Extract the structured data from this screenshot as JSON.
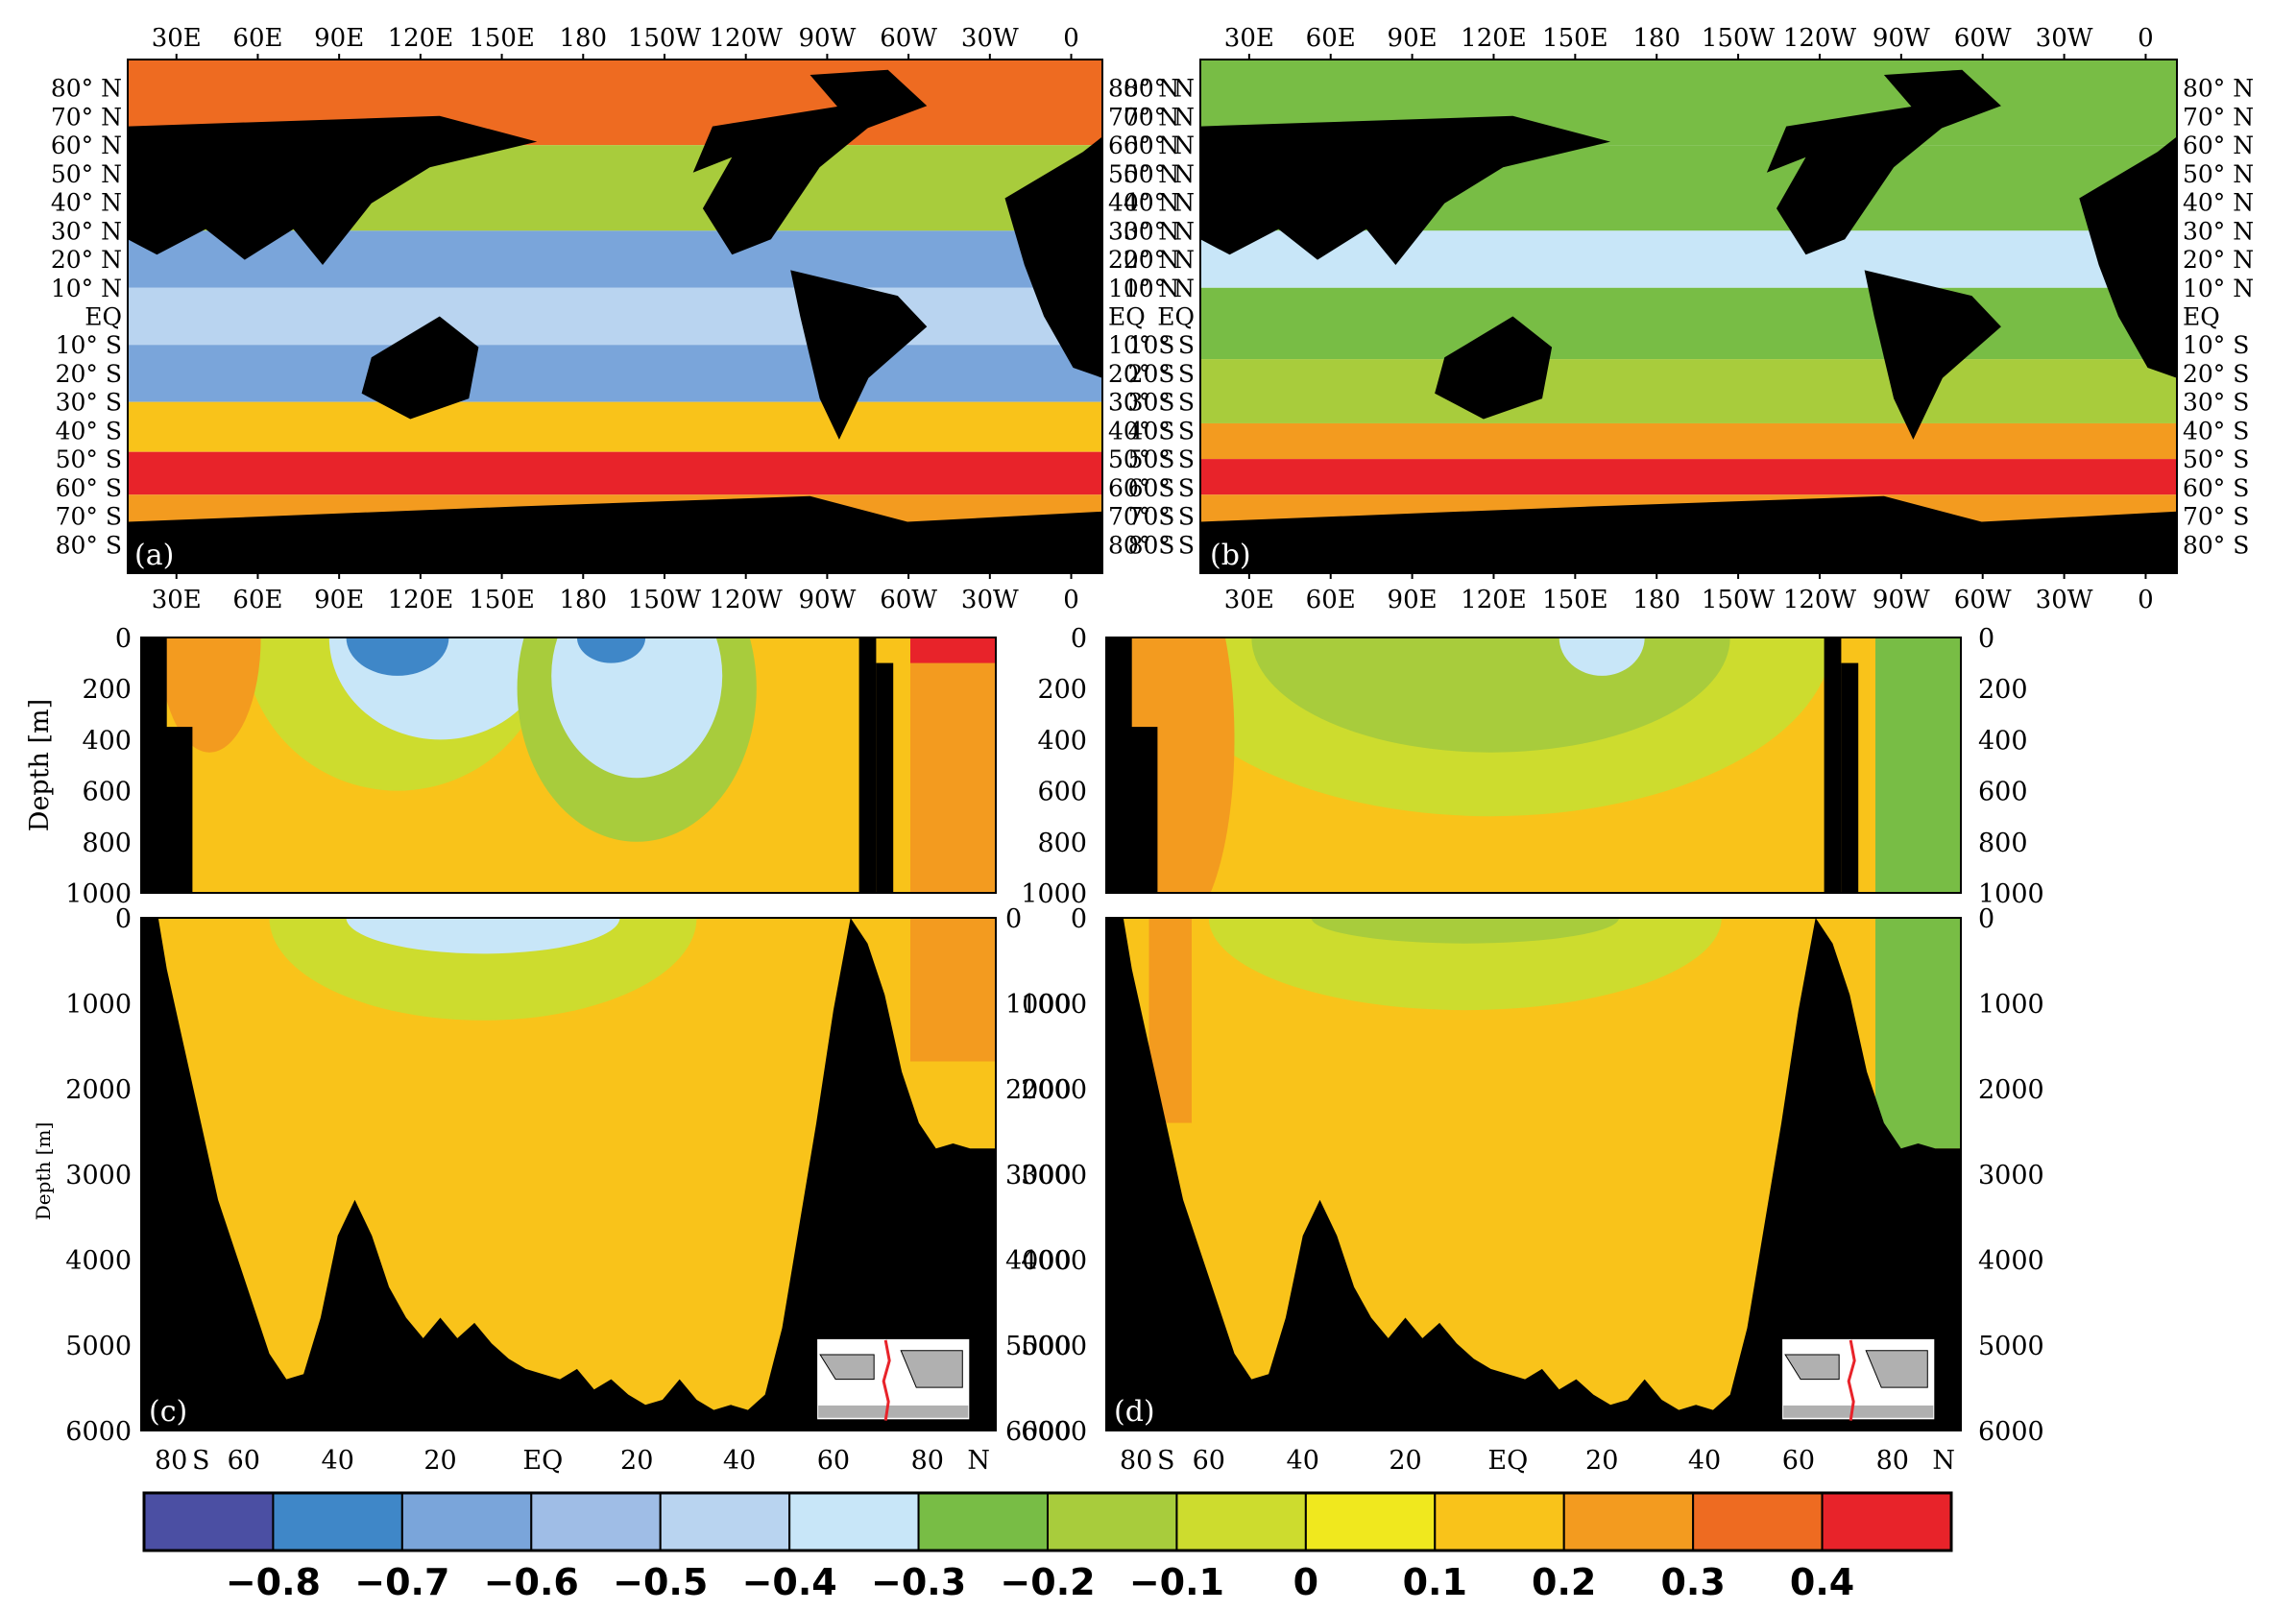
{
  "chart_data": [
    {
      "panel": "(a)",
      "type": "heatmap",
      "description": "global surface map",
      "x_ticks_top": [
        "30E",
        "60E",
        "90E",
        "120E",
        "150E",
        "180",
        "150W",
        "120W",
        "90W",
        "60W",
        "30W",
        "0"
      ],
      "x_ticks_bottom": [
        "30E",
        "60E",
        "90E",
        "120E",
        "150E",
        "180",
        "150W",
        "120W",
        "90W",
        "60W",
        "30W",
        "0"
      ],
      "y_ticks": [
        "80° N",
        "70° N",
        "60° N",
        "50° N",
        "40° N",
        "30° N",
        "20° N",
        "10° N",
        "EQ",
        "10° S",
        "20° S",
        "30° S",
        "40° S",
        "50° S",
        "60° S",
        "70° S",
        "80° S"
      ],
      "zonal_pattern": [
        {
          "lat": 80,
          "level": 0.3
        },
        {
          "lat": 40,
          "level": -0.2
        },
        {
          "lat": 20,
          "level": -0.7
        },
        {
          "lat": 0,
          "level": -0.5
        },
        {
          "lat": -20,
          "level": -0.7
        },
        {
          "lat": -40,
          "level": 0.1
        },
        {
          "lat": -55,
          "level": 0.4
        },
        {
          "lat": -70,
          "level": 0.2
        }
      ]
    },
    {
      "panel": "(b)",
      "type": "heatmap",
      "description": "global surface map",
      "x_ticks_top": [
        "30E",
        "60E",
        "90E",
        "120E",
        "150E",
        "180",
        "150W",
        "120W",
        "90W",
        "60W",
        "30W",
        "0"
      ],
      "x_ticks_bottom": [
        "30E",
        "60E",
        "90E",
        "120E",
        "150E",
        "180",
        "150W",
        "120W",
        "90W",
        "60W",
        "30W",
        "0"
      ],
      "y_ticks": [
        "80° N",
        "70° N",
        "60° N",
        "50° N",
        "40° N",
        "30° N",
        "20° N",
        "10° N",
        "EQ",
        "10° S",
        "20° S",
        "30° S",
        "40° S",
        "50° S",
        "60° S",
        "70° S",
        "80° S"
      ],
      "zonal_pattern": [
        {
          "lat": 80,
          "level": -0.3
        },
        {
          "lat": 40,
          "level": -0.3
        },
        {
          "lat": 20,
          "level": -0.4
        },
        {
          "lat": 0,
          "level": -0.3
        },
        {
          "lat": -30,
          "level": -0.2
        },
        {
          "lat": -45,
          "level": 0.2
        },
        {
          "lat": -55,
          "level": 0.4
        },
        {
          "lat": -70,
          "level": 0.2
        }
      ]
    },
    {
      "panel": "(c)",
      "type": "heatmap",
      "description": "meridional depth section",
      "ylabel_upper": "Depth [m]",
      "ylabel_lower": "Depth [m]",
      "upper_depth_ticks": [
        "0",
        "200",
        "400",
        "600",
        "800",
        "1000"
      ],
      "lower_depth_ticks": [
        "0",
        "1000",
        "2000",
        "3000",
        "4000",
        "5000",
        "6000"
      ],
      "x_ticks": [
        "80",
        "S",
        "60",
        "40",
        "20",
        "EQ",
        "20",
        "40",
        "60",
        "80",
        "N"
      ]
    },
    {
      "panel": "(d)",
      "type": "heatmap",
      "description": "meridional depth section",
      "upper_depth_ticks": [
        "0",
        "200",
        "400",
        "600",
        "800",
        "1000"
      ],
      "lower_depth_ticks": [
        "0",
        "1000",
        "2000",
        "3000",
        "4000",
        "5000",
        "6000"
      ],
      "x_ticks": [
        "80",
        "S",
        "60",
        "40",
        "20",
        "EQ",
        "20",
        "40",
        "60",
        "80",
        "N"
      ]
    }
  ],
  "colorbar": {
    "labels": [
      "−0.8",
      "−0.7",
      "−0.6",
      "−0.5",
      "−0.4",
      "−0.3",
      "−0.2",
      "−0.1",
      "0",
      "0.1",
      "0.2",
      "0.3",
      "0.4"
    ],
    "colors": [
      "#4b4fa3",
      "#3f87c8",
      "#7aa5da",
      "#9fbde6",
      "#b9d4f0",
      "#c8e6f8",
      "#78bd45",
      "#a8cc3c",
      "#cddc2e",
      "#f0e81e",
      "#f9c31a",
      "#f39b1f",
      "#ee6b21",
      "#e8232a"
    ],
    "land_color": "#000000"
  }
}
